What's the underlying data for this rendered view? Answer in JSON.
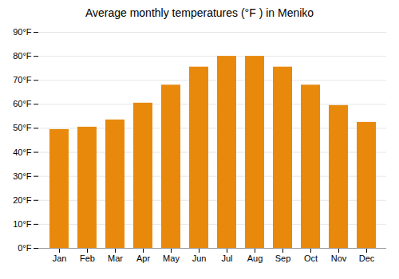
{
  "chart_data": {
    "type": "bar",
    "title": "Average monthly temperatures (°F ) in Meniko",
    "categories": [
      "Jan",
      "Feb",
      "Mar",
      "Apr",
      "May",
      "Jun",
      "Jul",
      "Aug",
      "Sep",
      "Oct",
      "Nov",
      "Dec"
    ],
    "values": [
      49.5,
      50.5,
      53.5,
      60.5,
      68,
      75.5,
      80,
      80,
      75.5,
      68,
      59.5,
      52.5
    ],
    "color": "#E8890C",
    "ylim": [
      0,
      90
    ],
    "yticks": [
      {
        "value": 0,
        "label": "0°F"
      },
      {
        "value": 10,
        "label": "10°F"
      },
      {
        "value": 20,
        "label": "20°F"
      },
      {
        "value": 30,
        "label": "30°F"
      },
      {
        "value": 40,
        "label": "40°F"
      },
      {
        "value": 50,
        "label": "50°F"
      },
      {
        "value": 60,
        "label": "60°F"
      },
      {
        "value": 70,
        "label": "70°F"
      },
      {
        "value": 80,
        "label": "80°F"
      },
      {
        "value": 90,
        "label": "90°F"
      }
    ],
    "grid": true
  }
}
